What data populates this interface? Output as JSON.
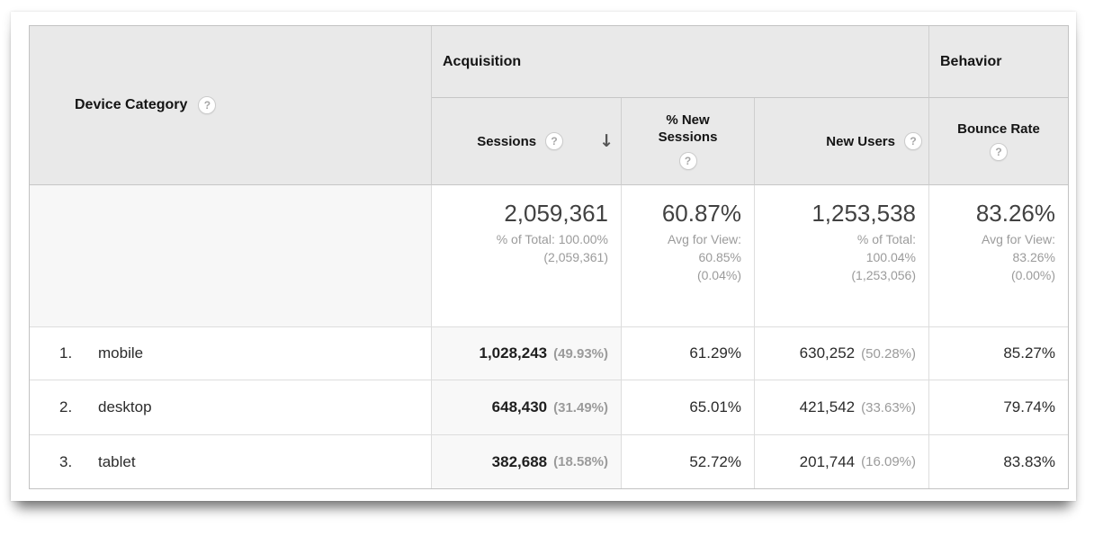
{
  "icons": {
    "help": "?",
    "sort_descending": "↓"
  },
  "table": {
    "dimension_header": "Device Category",
    "group_headers": {
      "acquisition": "Acquisition",
      "behavior": "Behavior"
    },
    "metric_headers": {
      "sessions": "Sessions",
      "new_sessions": "% New Sessions",
      "new_users": "New Users",
      "bounce_rate": "Bounce Rate"
    },
    "totals": {
      "sessions": {
        "value": "2,059,361",
        "sub": [
          "% of Total: 100.00%",
          "(2,059,361)"
        ]
      },
      "new_sessions": {
        "value": "60.87%",
        "sub": [
          "Avg for View:",
          "60.85%",
          "(0.04%)"
        ]
      },
      "new_users": {
        "value": "1,253,538",
        "sub": [
          "% of Total:",
          "100.04%",
          "(1,253,056)"
        ]
      },
      "bounce_rate": {
        "value": "83.26%",
        "sub": [
          "Avg for View:",
          "83.26%",
          "(0.00%)"
        ]
      }
    },
    "rows": [
      {
        "rank": "1.",
        "device": "mobile",
        "sessions": "1,028,243",
        "sessions_pct": "(49.93%)",
        "new_sessions": "61.29%",
        "new_users": "630,252",
        "new_users_pct": "(50.28%)",
        "bounce_rate": "85.27%"
      },
      {
        "rank": "2.",
        "device": "desktop",
        "sessions": "648,430",
        "sessions_pct": "(31.49%)",
        "new_sessions": "65.01%",
        "new_users": "421,542",
        "new_users_pct": "(33.63%)",
        "bounce_rate": "79.74%"
      },
      {
        "rank": "3.",
        "device": "tablet",
        "sessions": "382,688",
        "sessions_pct": "(18.58%)",
        "new_sessions": "52.72%",
        "new_users": "201,744",
        "new_users_pct": "(16.09%)",
        "bounce_rate": "83.83%"
      }
    ]
  }
}
